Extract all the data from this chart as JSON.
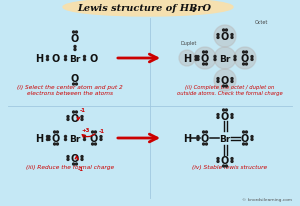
{
  "title_main": "Lewis structure of HBrO",
  "title_sub": "4",
  "bg_color": "#c5e8f5",
  "title_bg": "#f5e0b0",
  "title_color": "#111111",
  "arrow_color": "#cc0000",
  "caption_color": "#cc0000",
  "text_color": "#111111",
  "dot_color": "#222222",
  "watermark": "© knordsilearning.com",
  "panel1_caption": "(i) Select the center atom and put 2\nelectrons between the atoms",
  "panel2_caption": "(ii) Complete the octet / duplet on\noutside atoms. Check the formal charge",
  "panel3_caption": "(iii) Reduce the formal charge",
  "panel4_caption": "(iv) Stable lewis structure",
  "duplet_label": "Duplet",
  "octet_label": "Octet"
}
